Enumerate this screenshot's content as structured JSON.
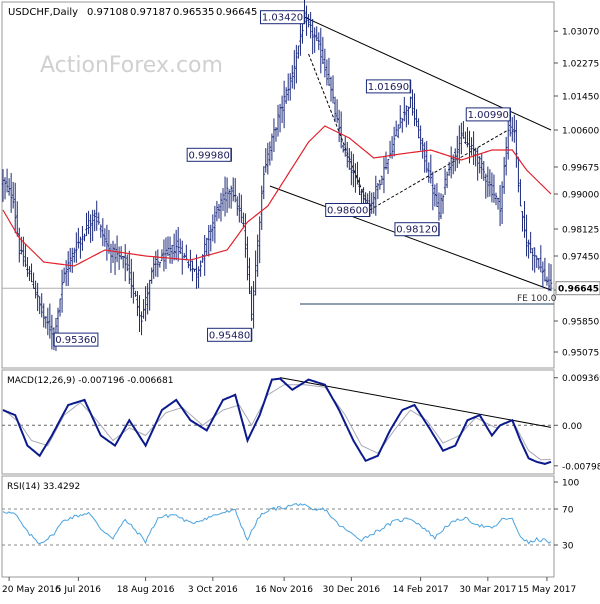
{
  "chart_data": [
    {
      "type": "line",
      "panel": "price",
      "title": "USDCHF,Daily",
      "ohlc_header": [
        "0.97108",
        "0.97187",
        "0.96535",
        "0.96645"
      ],
      "watermark": "ActionForex.com",
      "ylim": [
        0.948,
        1.036
      ],
      "ytick_values": [
        0.9505,
        0.95825,
        0.966,
        0.9745,
        0.98125,
        0.99,
        0.99675,
        1.006,
        1.0145,
        1.02275,
        1.0307
      ],
      "ytick_labels": [
        "0.95075",
        "0.95850",
        "",
        "0.97450",
        "0.98125",
        "0.99000",
        "0.99675",
        "1.00600",
        "1.01450",
        "1.02275",
        "1.03070"
      ],
      "last_price_label": "0.96645",
      "last_price": 0.96645,
      "fe_label": "FE 100.0",
      "fe_level": 0.9625,
      "x_count": 270,
      "xtick_index": [
        3,
        37,
        70,
        103,
        138,
        171,
        205,
        238,
        267
      ],
      "xtick_labels": [
        "20 May 2016",
        "5 Jul 2016",
        "18 Aug 2016",
        "3 Oct 2016",
        "16 Nov 2016",
        "30 Dec 2016",
        "14 Feb 2017",
        "30 Mar 2017",
        "15 May 2017"
      ],
      "price_anchors": [
        [
          0,
          0.993
        ],
        [
          5,
          0.989
        ],
        [
          8,
          0.976
        ],
        [
          15,
          0.967
        ],
        [
          20,
          0.959
        ],
        [
          25,
          0.955
        ],
        [
          30,
          0.97
        ],
        [
          36,
          0.977
        ],
        [
          45,
          0.985
        ],
        [
          52,
          0.976
        ],
        [
          60,
          0.973
        ],
        [
          65,
          0.964
        ],
        [
          68,
          0.959
        ],
        [
          74,
          0.972
        ],
        [
          85,
          0.977
        ],
        [
          95,
          0.97
        ],
        [
          105,
          0.986
        ],
        [
          112,
          0.992
        ],
        [
          118,
          0.982
        ],
        [
          122,
          0.96
        ],
        [
          128,
          0.996
        ],
        [
          135,
          1.009
        ],
        [
          142,
          1.02
        ],
        [
          148,
          1.034
        ],
        [
          155,
          1.027
        ],
        [
          160,
          1.018
        ],
        [
          166,
          1.003
        ],
        [
          174,
          0.992
        ],
        [
          180,
          0.987
        ],
        [
          190,
          1.0
        ],
        [
          195,
          1.009
        ],
        [
          200,
          1.013
        ],
        [
          205,
          1.003
        ],
        [
          210,
          0.993
        ],
        [
          214,
          0.985
        ],
        [
          218,
          0.996
        ],
        [
          225,
          1.004
        ],
        [
          232,
          1.0
        ],
        [
          238,
          0.993
        ],
        [
          244,
          0.987
        ],
        [
          248,
          1.006
        ],
        [
          251,
          1.006
        ],
        [
          254,
          0.986
        ],
        [
          257,
          0.978
        ],
        [
          262,
          0.974
        ],
        [
          266,
          0.969
        ],
        [
          269,
          0.9665
        ]
      ],
      "ma_anchors": [
        [
          0,
          0.986
        ],
        [
          8,
          0.979
        ],
        [
          20,
          0.973
        ],
        [
          35,
          0.972
        ],
        [
          50,
          0.976
        ],
        [
          70,
          0.9745
        ],
        [
          92,
          0.9735
        ],
        [
          110,
          0.976
        ],
        [
          120,
          0.983
        ],
        [
          130,
          0.987
        ],
        [
          140,
          0.995
        ],
        [
          150,
          1.003
        ],
        [
          158,
          1.007
        ],
        [
          170,
          1.004
        ],
        [
          182,
          0.999
        ],
        [
          195,
          1.0
        ],
        [
          210,
          1.001
        ],
        [
          225,
          0.9985
        ],
        [
          240,
          1.001
        ],
        [
          250,
          1.001
        ],
        [
          257,
          0.996
        ],
        [
          263,
          0.993
        ],
        [
          269,
          0.99
        ]
      ],
      "pivots": [
        {
          "label": "1.03420",
          "index": 148,
          "value": 1.0342,
          "side": "left"
        },
        {
          "label": "1.01690",
          "index": 200,
          "value": 1.0169,
          "side": "left"
        },
        {
          "label": "1.00990",
          "index": 249,
          "value": 1.0099,
          "side": "left"
        },
        {
          "label": "0.99980",
          "index": 112,
          "value": 0.9998,
          "side": "left"
        },
        {
          "label": "0.98600",
          "index": 180,
          "value": 0.986,
          "side": "left"
        },
        {
          "label": "0.98120",
          "index": 214,
          "value": 0.9812,
          "side": "left"
        },
        {
          "label": "0.95360",
          "index": 25,
          "value": 0.9536,
          "side": "right"
        },
        {
          "label": "0.95480",
          "index": 122,
          "value": 0.9548,
          "side": "left"
        }
      ]
    },
    {
      "type": "line",
      "panel": "macd",
      "title": "MACD(12,26,9) -0.007196 -0.006681",
      "ylim": [
        -0.0092,
        0.0105
      ],
      "ytick_values": [
        0.009369,
        0.0,
        -0.007985
      ],
      "ytick_labels": [
        "0.009369",
        "0.00",
        "-0.007985"
      ],
      "zero_line": 0.0,
      "macd_anchors": [
        [
          0,
          0.003
        ],
        [
          6,
          0.002
        ],
        [
          12,
          -0.004
        ],
        [
          18,
          -0.006
        ],
        [
          24,
          -0.002
        ],
        [
          32,
          0.004
        ],
        [
          40,
          0.005
        ],
        [
          48,
          -0.002
        ],
        [
          55,
          -0.004
        ],
        [
          62,
          0.001
        ],
        [
          70,
          -0.004
        ],
        [
          78,
          0.003
        ],
        [
          85,
          0.005
        ],
        [
          92,
          0.001
        ],
        [
          100,
          -0.001
        ],
        [
          108,
          0.005
        ],
        [
          114,
          0.006
        ],
        [
          120,
          -0.003
        ],
        [
          126,
          0.002
        ],
        [
          132,
          0.009
        ],
        [
          136,
          0.0092
        ],
        [
          142,
          0.007
        ],
        [
          150,
          0.009
        ],
        [
          158,
          0.008
        ],
        [
          165,
          0.003
        ],
        [
          172,
          -0.003
        ],
        [
          178,
          -0.007
        ],
        [
          184,
          -0.006
        ],
        [
          190,
          -0.001
        ],
        [
          196,
          0.003
        ],
        [
          202,
          0.004
        ],
        [
          210,
          -0.001
        ],
        [
          216,
          -0.005
        ],
        [
          222,
          -0.004
        ],
        [
          228,
          0.001
        ],
        [
          234,
          0.002
        ],
        [
          240,
          -0.002
        ],
        [
          244,
          0.0
        ],
        [
          250,
          0.001
        ],
        [
          254,
          -0.003
        ],
        [
          258,
          -0.0065
        ],
        [
          262,
          -0.0072
        ],
        [
          266,
          -0.0076
        ],
        [
          269,
          -0.0072
        ]
      ],
      "signal_anchors": [
        [
          0,
          0.0032
        ],
        [
          8,
          0.0005
        ],
        [
          14,
          -0.003
        ],
        [
          22,
          -0.004
        ],
        [
          30,
          0.002
        ],
        [
          38,
          0.0045
        ],
        [
          46,
          0.001
        ],
        [
          54,
          -0.003
        ],
        [
          62,
          -0.0005
        ],
        [
          70,
          -0.002
        ],
        [
          80,
          0.0025
        ],
        [
          88,
          0.0035
        ],
        [
          98,
          0.0
        ],
        [
          108,
          0.003
        ],
        [
          116,
          0.004
        ],
        [
          122,
          0.0
        ],
        [
          130,
          0.006
        ],
        [
          138,
          0.008
        ],
        [
          148,
          0.008
        ],
        [
          158,
          0.0075
        ],
        [
          168,
          0.002
        ],
        [
          176,
          -0.004
        ],
        [
          184,
          -0.0055
        ],
        [
          192,
          -0.001
        ],
        [
          200,
          0.003
        ],
        [
          208,
          0.001
        ],
        [
          216,
          -0.0035
        ],
        [
          224,
          -0.002
        ],
        [
          232,
          0.0015
        ],
        [
          242,
          -0.0005
        ],
        [
          250,
          0.001
        ],
        [
          258,
          -0.005
        ],
        [
          264,
          -0.0068
        ],
        [
          269,
          -0.0067
        ]
      ]
    },
    {
      "type": "line",
      "panel": "rsi",
      "title": "RSI(14) 33.4292",
      "ylim": [
        0,
        100
      ],
      "ytick_values": [
        100,
        70,
        30
      ],
      "ytick_labels": [
        "100",
        "70",
        "30"
      ],
      "levels": [
        70,
        30
      ],
      "rsi_anchors": [
        [
          0,
          68
        ],
        [
          6,
          64
        ],
        [
          12,
          44
        ],
        [
          18,
          32
        ],
        [
          24,
          40
        ],
        [
          30,
          58
        ],
        [
          36,
          62
        ],
        [
          42,
          66
        ],
        [
          48,
          48
        ],
        [
          54,
          38
        ],
        [
          60,
          58
        ],
        [
          66,
          44
        ],
        [
          70,
          34
        ],
        [
          76,
          60
        ],
        [
          84,
          64
        ],
        [
          92,
          54
        ],
        [
          100,
          60
        ],
        [
          108,
          66
        ],
        [
          114,
          68
        ],
        [
          120,
          36
        ],
        [
          126,
          62
        ],
        [
          132,
          70
        ],
        [
          138,
          72
        ],
        [
          146,
          76
        ],
        [
          152,
          68
        ],
        [
          158,
          70
        ],
        [
          164,
          54
        ],
        [
          170,
          44
        ],
        [
          176,
          36
        ],
        [
          184,
          46
        ],
        [
          192,
          56
        ],
        [
          200,
          60
        ],
        [
          206,
          50
        ],
        [
          212,
          38
        ],
        [
          218,
          52
        ],
        [
          226,
          60
        ],
        [
          234,
          52
        ],
        [
          240,
          48
        ],
        [
          246,
          60
        ],
        [
          250,
          58
        ],
        [
          254,
          40
        ],
        [
          258,
          32
        ],
        [
          262,
          36
        ],
        [
          266,
          35
        ],
        [
          269,
          33
        ]
      ]
    }
  ],
  "colors": {
    "price_bars": "#1c2a7a",
    "ma": "#e0202a",
    "macd": "#0b1a8c",
    "signal": "#a9a9b8",
    "rsi": "#4aa3df",
    "trendlines": "#000000",
    "fe_line": "#1f3f5f",
    "pivot_box": "#1c2a7a",
    "watermark": "#d0d0d0"
  }
}
